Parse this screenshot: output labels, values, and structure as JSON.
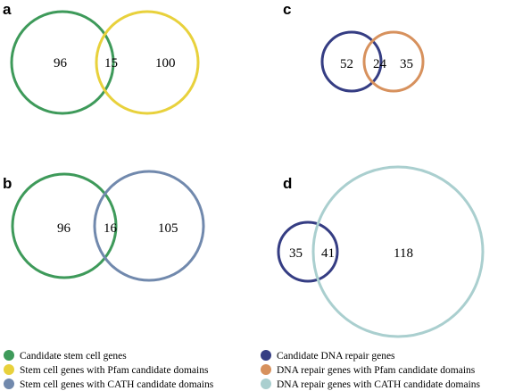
{
  "colors": {
    "green": "#3e9a5a",
    "yellow": "#e8d13c",
    "steel": "#7189ad",
    "navy": "#353d83",
    "orange": "#d7915d",
    "lightblue": "#aacfcf"
  },
  "panels": {
    "a": {
      "label": "a",
      "counts": {
        "left": "96",
        "overlap": "15",
        "right": "100"
      }
    },
    "b": {
      "label": "b",
      "counts": {
        "left": "96",
        "overlap": "16",
        "right": "105"
      }
    },
    "c": {
      "label": "c",
      "counts": {
        "left": "52",
        "overlap": "24",
        "right": "35"
      }
    },
    "d": {
      "label": "d",
      "counts": {
        "left": "35",
        "overlap": "41",
        "right": "118"
      }
    }
  },
  "legend": {
    "left": [
      {
        "text": "Candidate stem cell genes",
        "color": "#3e9a5a"
      },
      {
        "text": "Stem cell genes with Pfam  candidate domains",
        "color": "#e8d13c"
      },
      {
        "text": "Stem cell genes with CATH candidate domains",
        "color": "#7189ad"
      }
    ],
    "right": [
      {
        "text": "Candidate DNA repair genes",
        "color": "#353d83"
      },
      {
        "text": "DNA repair genes with Pfam candidate domains",
        "color": "#d7915d"
      },
      {
        "text": "DNA repair genes with CATH candidate domains",
        "color": "#aacfcf"
      }
    ]
  }
}
